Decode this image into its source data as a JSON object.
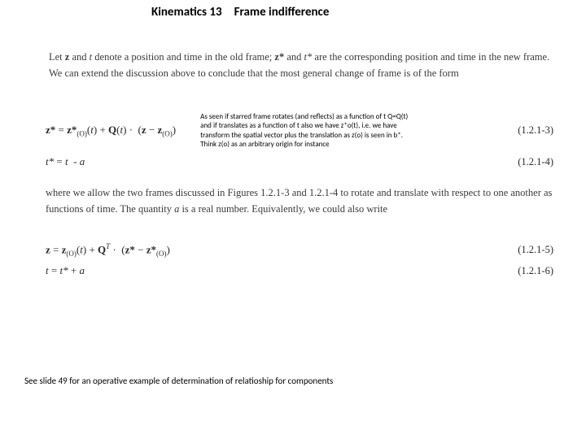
{
  "title": "Kinematics 13 Frame indifference",
  "para1": "Let <span class='bold'>z</span> and <i>t</i> denote a position and time in the old frame; <span class='bold'>z*</span> and <i>t*</i> are the corresponding position and time in the new frame. We can extend the discussion above to conclude that the most general change of frame is of the form",
  "eq1_math": "<span class='bold'>z*</span> = <span class='bold'>z*</span><span class='sub'>(O)</span>(<i>t</i>) + <span class='bold'>Q</span>(<i>t</i>) · &nbsp;(<span class='bold'>z</span> − <span class='bold'>z</span><span class='sub'>(O)</span>)",
  "eq1_num": "(1.2.1-3)",
  "eq2_math": "<i>t*</i> = <i>t</i>&nbsp; - <i>a</i>",
  "eq2_num": "(1.2.1-4)",
  "note_lines": "As seen if starred frame rotates (and reflects) as a function of t Q=Q(t) and if translates as a function of t also we have z*o(t), i.e. we have transform the spatial vector plus the translation as z(o) is seen in b*. Think z(o) as an arbitrary origin for instance",
  "para2": "where we allow the two frames discussed in Figures 1.2.1-3 and 1.2.1-4 to rotate and translate with respect to one another as functions of time. The quantity <i>a</i> is a real number. Equivalently, we could also write",
  "eq3_math": "<span class='bold'>z</span> = <span class='bold'>z</span><span class='sub'>(O)</span>(<i>t</i>) + <span class='bold'>Q</span><span class='sup'><i>T</i></span> · &nbsp;(<span class='bold'>z*</span> − <span class='bold'>z*</span><span class='sub'>(O)</span>)",
  "eq3_num": "(1.2.1-5)",
  "eq4_math": "<i>t</i> = <i>t*</i> + <i>a</i>",
  "eq4_num": "(1.2.1-6)",
  "footer": "See slide 49 for an operative example of determination of relatioship for components"
}
